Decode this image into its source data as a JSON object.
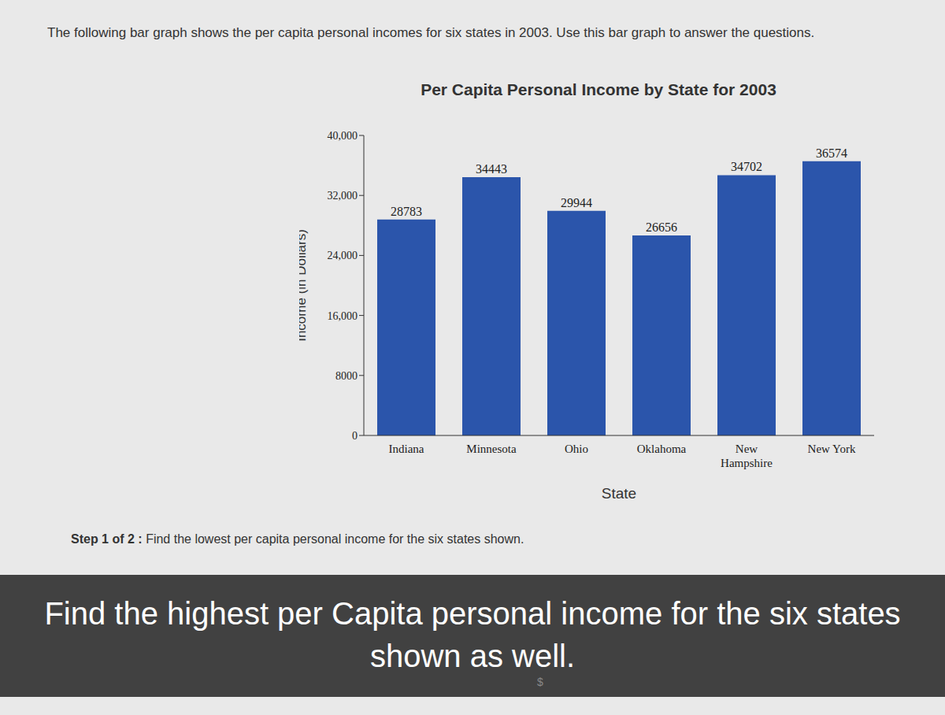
{
  "intro": "The following bar graph shows the per capita personal incomes for six states in 2003. Use this bar graph to answer the questions.",
  "step": {
    "label": "Step 1 of 2 :",
    "text": "Find the lowest per capita personal income for the six states shown."
  },
  "caption": "Find the highest per Capita personal income for the six states shown as well.",
  "answer_prefix": "$",
  "chart_data": {
    "type": "bar",
    "title": "Per Capita Personal Income by State for 2003",
    "x_label": "State",
    "y_label": "Income (in Dollars)",
    "categories": [
      "Indiana",
      "Minnesota",
      "Ohio",
      "Oklahoma",
      "New Hampshire",
      "New York"
    ],
    "values": [
      28783,
      34443,
      29944,
      26656,
      34702,
      36574
    ],
    "color": "#2b55ab",
    "ylim": [
      0,
      40000
    ],
    "yticks": [
      0,
      8000,
      {
        "value": 16000,
        "label": "16,000"
      },
      {
        "value": 24000,
        "label": "24,000"
      },
      {
        "value": 32000,
        "label": "32,000"
      },
      {
        "value": 40000,
        "label": "40,000"
      }
    ],
    "grid": false,
    "data_labels": true
  }
}
